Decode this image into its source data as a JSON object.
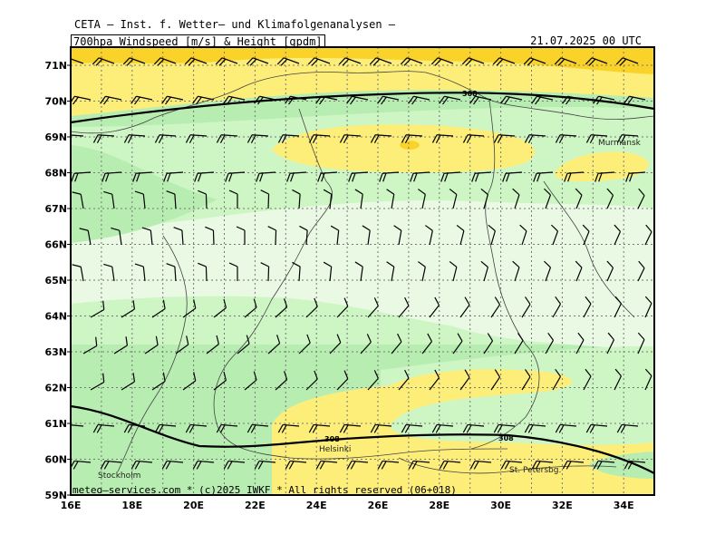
{
  "header": {
    "institute": "CETA — Inst. f. Wetter— und Klimafolgenanalysen —",
    "parameter": "700hpa_Windspeed_[m/s]_&_Height_[gpdm]",
    "valid_time": "21.07.2025 00 UTC"
  },
  "footer": {
    "credit": "meteo—services.com * (c)2025 IWKF * All rights reserved (06+018)"
  },
  "axes": {
    "latitude_labels": [
      "71N",
      "70N",
      "69N",
      "68N",
      "67N",
      "66N",
      "65N",
      "64N",
      "63N",
      "62N",
      "61N",
      "60N",
      "59N"
    ],
    "longitude_labels": [
      "16E",
      "18E",
      "20E",
      "22E",
      "24E",
      "26E",
      "28E",
      "30E",
      "32E",
      "34E"
    ]
  },
  "cities": [
    "Murmansk",
    "Helsinki",
    "Stockholm",
    "St. Petersbg."
  ],
  "contour_labels": [
    "308",
    "308",
    "308"
  ],
  "colors": {
    "very_light_green": "#eaf9e4",
    "light_green": "#cdf6c4",
    "medium_green": "#b8edb2",
    "yellow": "#fdee7a",
    "gold": "#f9d32a",
    "contour": "#000000"
  }
}
